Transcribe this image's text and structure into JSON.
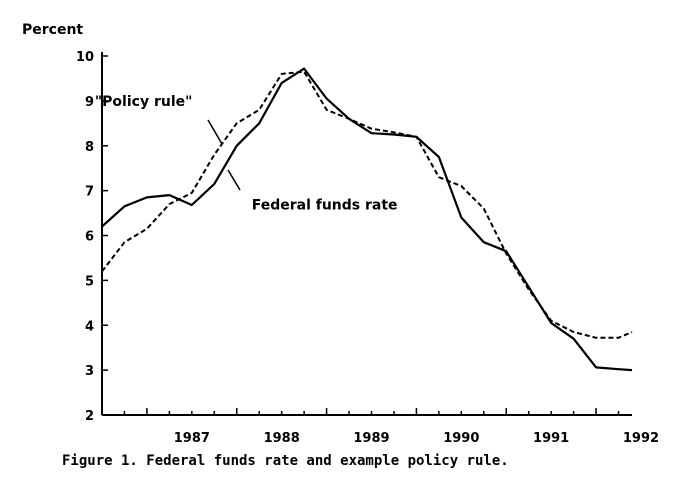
{
  "chart_data": {
    "type": "line",
    "ylabel": "Percent",
    "xlabel": "",
    "caption": "Figure 1.  Federal funds rate and example policy rule.",
    "ylim": [
      2,
      10
    ],
    "xlim": [
      1986.5,
      1992.4
    ],
    "yticks": [
      2,
      3,
      4,
      5,
      6,
      7,
      8,
      9,
      10
    ],
    "xtick_labels": [
      "1987",
      "1988",
      "1989",
      "1990",
      "1991",
      "1992"
    ],
    "xtick_positions": [
      1987,
      1988,
      1989,
      1990,
      1991,
      1992
    ],
    "grid": false,
    "series": [
      {
        "name": "Federal funds rate",
        "style": "solid",
        "x": [
          1986.5,
          1986.75,
          1987.0,
          1987.25,
          1987.5,
          1987.75,
          1988.0,
          1988.25,
          1988.5,
          1988.75,
          1989.0,
          1989.25,
          1989.5,
          1989.75,
          1990.0,
          1990.25,
          1990.5,
          1990.75,
          1991.0,
          1991.25,
          1991.5,
          1991.75,
          1992.0,
          1992.25,
          1992.4
        ],
        "y": [
          6.2,
          6.65,
          6.85,
          6.9,
          6.68,
          7.15,
          8.0,
          8.5,
          9.4,
          9.72,
          9.05,
          8.6,
          8.28,
          8.25,
          8.2,
          7.75,
          6.4,
          5.85,
          5.65,
          4.85,
          4.05,
          3.7,
          3.06,
          3.02,
          3.0
        ]
      },
      {
        "name": "\"Policy rule\"",
        "style": "dashed",
        "x": [
          1986.5,
          1986.75,
          1987.0,
          1987.25,
          1987.5,
          1987.75,
          1988.0,
          1988.25,
          1988.5,
          1988.75,
          1989.0,
          1989.25,
          1989.5,
          1989.75,
          1990.0,
          1990.25,
          1990.5,
          1990.75,
          1991.0,
          1991.25,
          1991.5,
          1991.75,
          1992.0,
          1992.25,
          1992.4
        ],
        "y": [
          5.2,
          5.85,
          6.15,
          6.7,
          6.95,
          7.8,
          8.5,
          8.8,
          9.6,
          9.65,
          8.8,
          8.6,
          8.38,
          8.3,
          8.2,
          7.3,
          7.1,
          6.6,
          5.6,
          4.8,
          4.1,
          3.85,
          3.72,
          3.72,
          3.85
        ]
      }
    ],
    "annotations": [
      {
        "text": "\"Policy rule\"",
        "x": 1987.2,
        "y": 9.0,
        "points_to": "\"Policy rule\""
      },
      {
        "text": "Federal funds rate",
        "x": 1988.1,
        "y": 6.8,
        "points_to": "Federal funds rate"
      }
    ],
    "colors": {
      "line": "#000000",
      "background": "#ffffff"
    }
  }
}
